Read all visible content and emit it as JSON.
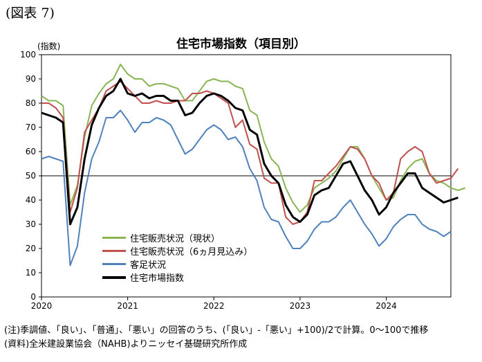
{
  "figure_label": "(図表 7)",
  "chart_data": {
    "type": "line",
    "title": "住宅市場指数（項目別）",
    "ylabel": "(指数)",
    "xlabel": "",
    "ylim": [
      0,
      100
    ],
    "yticks": [
      0,
      10,
      20,
      30,
      40,
      50,
      60,
      70,
      80,
      90,
      100
    ],
    "xticks": [
      "2020",
      "2021",
      "2022",
      "2023",
      "2024"
    ],
    "x_start": "2020-01",
    "reference_line": 50,
    "legend_position": "bottom-left",
    "series": [
      {
        "name": "住宅販売状況（現状）",
        "color": "#8ab554",
        "width": 2,
        "values": [
          83,
          81,
          81,
          79,
          38,
          46,
          66,
          79,
          84,
          88,
          90,
          96,
          92,
          90,
          90,
          87,
          88,
          88,
          87,
          86,
          81,
          81,
          85,
          89,
          90,
          89,
          89,
          87,
          86,
          77,
          75,
          64,
          57,
          54,
          45,
          39,
          35,
          38,
          45,
          47,
          49,
          52,
          57,
          62,
          62,
          57,
          50,
          45,
          40,
          41,
          48,
          53,
          56,
          57,
          51,
          48,
          47,
          45,
          44,
          45
        ]
      },
      {
        "name": "住宅販売状況（6ヵ月見込み）",
        "color": "#c0504d",
        "width": 2,
        "values": [
          80,
          80,
          78,
          74,
          35,
          45,
          68,
          73,
          78,
          85,
          87,
          89,
          86,
          83,
          80,
          80,
          81,
          80,
          80,
          81,
          81,
          84,
          84,
          85,
          84,
          82,
          80,
          70,
          73,
          63,
          61,
          49,
          47,
          47,
          33,
          30,
          31,
          35,
          48,
          48,
          51,
          54,
          58,
          62,
          61,
          57,
          50,
          47,
          40,
          43,
          57,
          60,
          62,
          60,
          51,
          47,
          48,
          49,
          53
        ]
      },
      {
        "name": "客足状況",
        "color": "#4f81bd",
        "width": 2,
        "values": [
          57,
          58,
          57,
          56,
          13,
          21,
          43,
          57,
          64,
          74,
          74,
          77,
          73,
          68,
          72,
          72,
          74,
          73,
          71,
          65,
          59,
          61,
          65,
          69,
          71,
          69,
          65,
          66,
          62,
          53,
          48,
          37,
          32,
          31,
          25,
          20,
          20,
          23,
          28,
          31,
          31,
          33,
          37,
          40,
          35,
          30,
          26,
          21,
          24,
          29,
          32,
          34,
          34,
          30,
          28,
          27,
          25,
          27
        ]
      },
      {
        "name": "住宅市場指数",
        "color": "#000000",
        "width": 3,
        "values": [
          76,
          75,
          74,
          72,
          30,
          37,
          57,
          71,
          78,
          83,
          85,
          90,
          84,
          83,
          84,
          82,
          83,
          83,
          81,
          81,
          75,
          76,
          80,
          83,
          84,
          83,
          81,
          78,
          77,
          69,
          67,
          55,
          50,
          47,
          38,
          33,
          31,
          34,
          42,
          44,
          45,
          50,
          55,
          56,
          50,
          44,
          40,
          34,
          37,
          43,
          47,
          51,
          51,
          45,
          43,
          41,
          39,
          40,
          41
        ]
      }
    ]
  },
  "notes": {
    "line1": "(注)季調値、「良い」、「普通」、「悪い」の回答のうち、(「良い」-「悪い」+100)/2で計算。0～100で推移",
    "line2": "(資料)全米建設業協会（NAHB)よりニッセイ基礎研究所作成"
  }
}
